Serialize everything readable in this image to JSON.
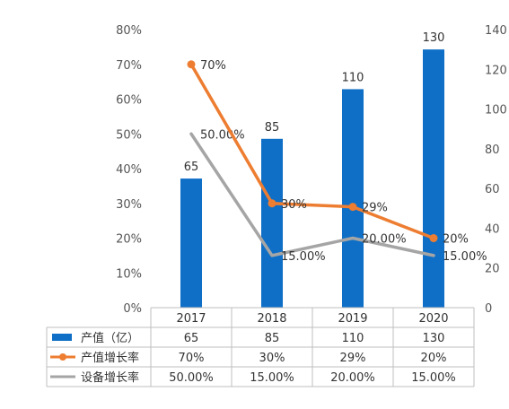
{
  "chart_data": {
    "type": "bar",
    "categories": [
      "2017",
      "2018",
      "2019",
      "2020"
    ],
    "series": [
      {
        "name": "产值（亿）",
        "kind": "bar",
        "axis": "right",
        "values": [
          65,
          85,
          110,
          130
        ],
        "labels": [
          "65",
          "85",
          "110",
          "130"
        ],
        "color": "#0f6fc6"
      },
      {
        "name": "产值增长率",
        "kind": "line",
        "axis": "left",
        "values": [
          70,
          30,
          29,
          20
        ],
        "labels": [
          "70%",
          "30%",
          "29%",
          "20%"
        ],
        "color": "#ed7d31",
        "markers": true
      },
      {
        "name": "设备增长率",
        "kind": "line",
        "axis": "left",
        "values": [
          50,
          15,
          20,
          15
        ],
        "labels": [
          "50.00%",
          "15.00%",
          "20.00%",
          "15.00%"
        ],
        "color": "#a5a5a5",
        "markers": false
      }
    ],
    "y_left": {
      "min": 0,
      "max": 80,
      "step": 10,
      "ticks": [
        "0%",
        "10%",
        "20%",
        "30%",
        "40%",
        "50%",
        "60%",
        "70%",
        "80%"
      ]
    },
    "y_right": {
      "min": 0,
      "max": 140,
      "step": 20,
      "ticks": [
        "0",
        "20",
        "40",
        "60",
        "80",
        "100",
        "120",
        "140"
      ]
    },
    "data_table": true,
    "grid": false
  }
}
